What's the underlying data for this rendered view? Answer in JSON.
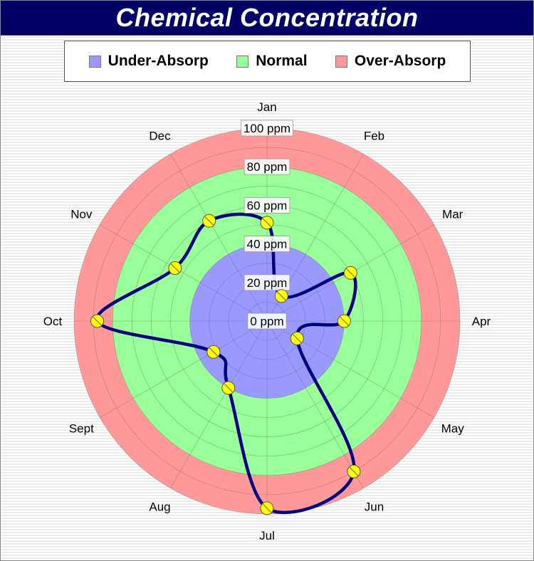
{
  "chart_data": {
    "type": "polar-line",
    "title": "Chemical Concentration",
    "unit": "ppm",
    "radial_range": [
      0,
      100
    ],
    "radial_ticks": [
      "0 ppm",
      "20 ppm",
      "40 ppm",
      "60 ppm",
      "80 ppm",
      "100 ppm"
    ],
    "categories": [
      "Jan",
      "Feb",
      "Mar",
      "Apr",
      "May",
      "Jun",
      "Jul",
      "Aug",
      "Sept",
      "Oct",
      "Nov",
      "Dec"
    ],
    "values": [
      51,
      15,
      50,
      40,
      18,
      90,
      97,
      40,
      32,
      88,
      55,
      60
    ],
    "zones": [
      {
        "name": "Under-Absorp",
        "from": 0,
        "to": 40,
        "color": "#9999ff"
      },
      {
        "name": "Normal",
        "from": 40,
        "to": 80,
        "color": "#99ff99"
      },
      {
        "name": "Over-Absorp",
        "from": 80,
        "to": 100,
        "color": "#ff9999"
      }
    ],
    "line_color": "#000080",
    "marker_color": "#ffff00",
    "legend_position": "top"
  }
}
